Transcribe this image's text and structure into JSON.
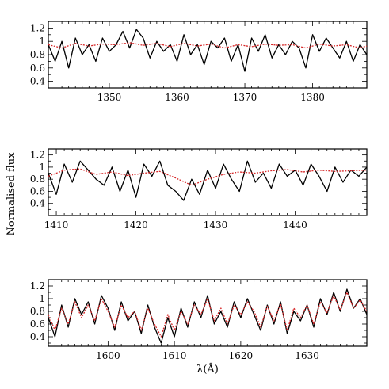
{
  "chart_data": {
    "type": "line",
    "ylabel": "Normalised flux",
    "xlabel": "λ(Å)",
    "series_styles": {
      "observed": {
        "color": "#000000",
        "dash": "solid"
      },
      "model": {
        "color": "#d62728",
        "dash": "dotted"
      }
    },
    "panels": [
      {
        "xlim": [
          1341,
          1388
        ],
        "ylim": [
          0.3,
          1.3
        ],
        "x_major_ticks": [
          1350,
          1360,
          1370,
          1380
        ],
        "x_tick_labels": [
          "1350",
          "1360",
          "1370",
          "1380"
        ],
        "y_major_ticks": [
          0.4,
          0.6,
          0.8,
          1.0,
          1.2
        ],
        "y_tick_labels": [
          "0.4",
          "0.6",
          "0.8",
          "1",
          "1.2"
        ],
        "observed": {
          "x": [
            1341,
            1342,
            1343,
            1344,
            1345,
            1346,
            1347,
            1348,
            1349,
            1350,
            1351,
            1352,
            1353,
            1354,
            1355,
            1356,
            1357,
            1358,
            1359,
            1360,
            1361,
            1362,
            1363,
            1364,
            1365,
            1366,
            1367,
            1368,
            1369,
            1370,
            1371,
            1372,
            1373,
            1374,
            1375,
            1376,
            1377,
            1378,
            1379,
            1380,
            1381,
            1382,
            1383,
            1384,
            1385,
            1386,
            1387,
            1388
          ],
          "y": [
            0.95,
            0.7,
            1.0,
            0.6,
            1.05,
            0.8,
            0.95,
            0.7,
            1.05,
            0.85,
            0.95,
            1.15,
            0.9,
            1.18,
            1.05,
            0.75,
            1.0,
            0.85,
            0.95,
            0.7,
            1.1,
            0.8,
            0.95,
            0.65,
            1.0,
            0.9,
            1.05,
            0.7,
            0.95,
            0.55,
            1.05,
            0.85,
            1.1,
            0.75,
            0.95,
            0.8,
            1.0,
            0.9,
            0.6,
            1.1,
            0.85,
            1.05,
            0.9,
            0.75,
            1.0,
            0.7,
            0.95,
            0.8
          ]
        },
        "model": {
          "x": [
            1341,
            1343,
            1345,
            1347,
            1349,
            1351,
            1353,
            1355,
            1357,
            1359,
            1361,
            1363,
            1365,
            1367,
            1369,
            1371,
            1373,
            1375,
            1377,
            1379,
            1381,
            1383,
            1385,
            1387,
            1388
          ],
          "y": [
            0.95,
            0.9,
            0.97,
            0.93,
            0.96,
            0.95,
            0.98,
            0.94,
            0.97,
            0.92,
            0.97,
            0.93,
            0.96,
            0.9,
            0.95,
            0.92,
            0.96,
            0.94,
            0.95,
            0.9,
            0.96,
            0.93,
            0.95,
            0.9,
            0.93
          ]
        }
      },
      {
        "xlim": [
          1409,
          1449
        ],
        "ylim": [
          0.2,
          1.3
        ],
        "x_major_ticks": [
          1410,
          1420,
          1430,
          1440
        ],
        "x_tick_labels": [
          "1410",
          "1420",
          "1430",
          "1440"
        ],
        "y_major_ticks": [
          0.4,
          0.6,
          0.8,
          1.0,
          1.2
        ],
        "y_tick_labels": [
          "0.4",
          "0.6",
          "0.8",
          "1",
          "1.2"
        ],
        "observed": {
          "x": [
            1409,
            1410,
            1411,
            1412,
            1413,
            1414,
            1415,
            1416,
            1417,
            1418,
            1419,
            1420,
            1421,
            1422,
            1423,
            1424,
            1425,
            1426,
            1427,
            1428,
            1429,
            1430,
            1431,
            1432,
            1433,
            1434,
            1435,
            1436,
            1437,
            1438,
            1439,
            1440,
            1441,
            1442,
            1443,
            1444,
            1445,
            1446,
            1447,
            1448,
            1449
          ],
          "y": [
            0.9,
            0.55,
            1.05,
            0.75,
            1.1,
            0.95,
            0.8,
            0.7,
            1.0,
            0.6,
            0.95,
            0.5,
            1.05,
            0.85,
            1.1,
            0.7,
            0.6,
            0.45,
            0.8,
            0.55,
            0.95,
            0.65,
            1.05,
            0.8,
            0.6,
            1.1,
            0.75,
            0.9,
            0.65,
            1.05,
            0.85,
            0.95,
            0.7,
            1.05,
            0.85,
            0.6,
            1.0,
            0.75,
            0.95,
            0.85,
            1.0
          ]
        },
        "model": {
          "x": [
            1409,
            1411,
            1413,
            1415,
            1417,
            1419,
            1421,
            1423,
            1425,
            1427,
            1429,
            1431,
            1433,
            1435,
            1437,
            1439,
            1441,
            1443,
            1445,
            1447,
            1449
          ],
          "y": [
            0.85,
            0.95,
            0.97,
            0.88,
            0.92,
            0.86,
            0.9,
            0.93,
            0.82,
            0.7,
            0.8,
            0.88,
            0.92,
            0.9,
            0.94,
            0.96,
            0.92,
            0.95,
            0.93,
            0.94,
            0.95
          ]
        }
      },
      {
        "xlim": [
          1591,
          1639
        ],
        "ylim": [
          0.25,
          1.3
        ],
        "x_major_ticks": [
          1600,
          1610,
          1620,
          1630
        ],
        "x_tick_labels": [
          "1600",
          "1610",
          "1620",
          "1630"
        ],
        "y_major_ticks": [
          0.4,
          0.6,
          0.8,
          1.0,
          1.2
        ],
        "y_tick_labels": [
          "0.4",
          "0.6",
          "0.8",
          "1",
          "1.2"
        ],
        "observed": {
          "x": [
            1591,
            1592,
            1593,
            1594,
            1595,
            1596,
            1597,
            1598,
            1599,
            1600,
            1601,
            1602,
            1603,
            1604,
            1605,
            1606,
            1607,
            1608,
            1609,
            1610,
            1611,
            1612,
            1613,
            1614,
            1615,
            1616,
            1617,
            1618,
            1619,
            1620,
            1621,
            1622,
            1623,
            1624,
            1625,
            1626,
            1627,
            1628,
            1629,
            1630,
            1631,
            1632,
            1633,
            1634,
            1635,
            1636,
            1637,
            1638,
            1639
          ],
          "y": [
            0.7,
            0.4,
            0.9,
            0.55,
            1.0,
            0.75,
            0.95,
            0.6,
            1.05,
            0.85,
            0.5,
            0.95,
            0.65,
            0.8,
            0.45,
            0.9,
            0.55,
            0.3,
            0.7,
            0.4,
            0.85,
            0.55,
            0.95,
            0.7,
            1.05,
            0.6,
            0.8,
            0.55,
            0.95,
            0.7,
            1.0,
            0.75,
            0.5,
            0.9,
            0.6,
            0.95,
            0.45,
            0.8,
            0.65,
            0.9,
            0.55,
            1.0,
            0.75,
            1.1,
            0.8,
            1.15,
            0.85,
            1.0,
            0.75
          ]
        },
        "model": {
          "x": [
            1591,
            1592,
            1593,
            1594,
            1595,
            1596,
            1597,
            1598,
            1599,
            1600,
            1601,
            1602,
            1603,
            1604,
            1605,
            1606,
            1607,
            1608,
            1609,
            1610,
            1611,
            1612,
            1613,
            1614,
            1615,
            1616,
            1617,
            1618,
            1619,
            1620,
            1621,
            1622,
            1623,
            1624,
            1625,
            1626,
            1627,
            1628,
            1629,
            1630,
            1631,
            1632,
            1633,
            1634,
            1635,
            1636,
            1637,
            1638,
            1639
          ],
          "y": [
            0.75,
            0.5,
            0.85,
            0.6,
            0.95,
            0.7,
            0.9,
            0.65,
            1.0,
            0.8,
            0.55,
            0.9,
            0.7,
            0.8,
            0.5,
            0.85,
            0.6,
            0.4,
            0.75,
            0.5,
            0.8,
            0.6,
            0.9,
            0.75,
            1.0,
            0.65,
            0.85,
            0.6,
            0.9,
            0.75,
            0.95,
            0.8,
            0.55,
            0.88,
            0.65,
            0.92,
            0.5,
            0.85,
            0.7,
            0.9,
            0.6,
            0.95,
            0.78,
            1.05,
            0.82,
            1.1,
            0.85,
            0.98,
            0.8
          ]
        }
      }
    ]
  }
}
